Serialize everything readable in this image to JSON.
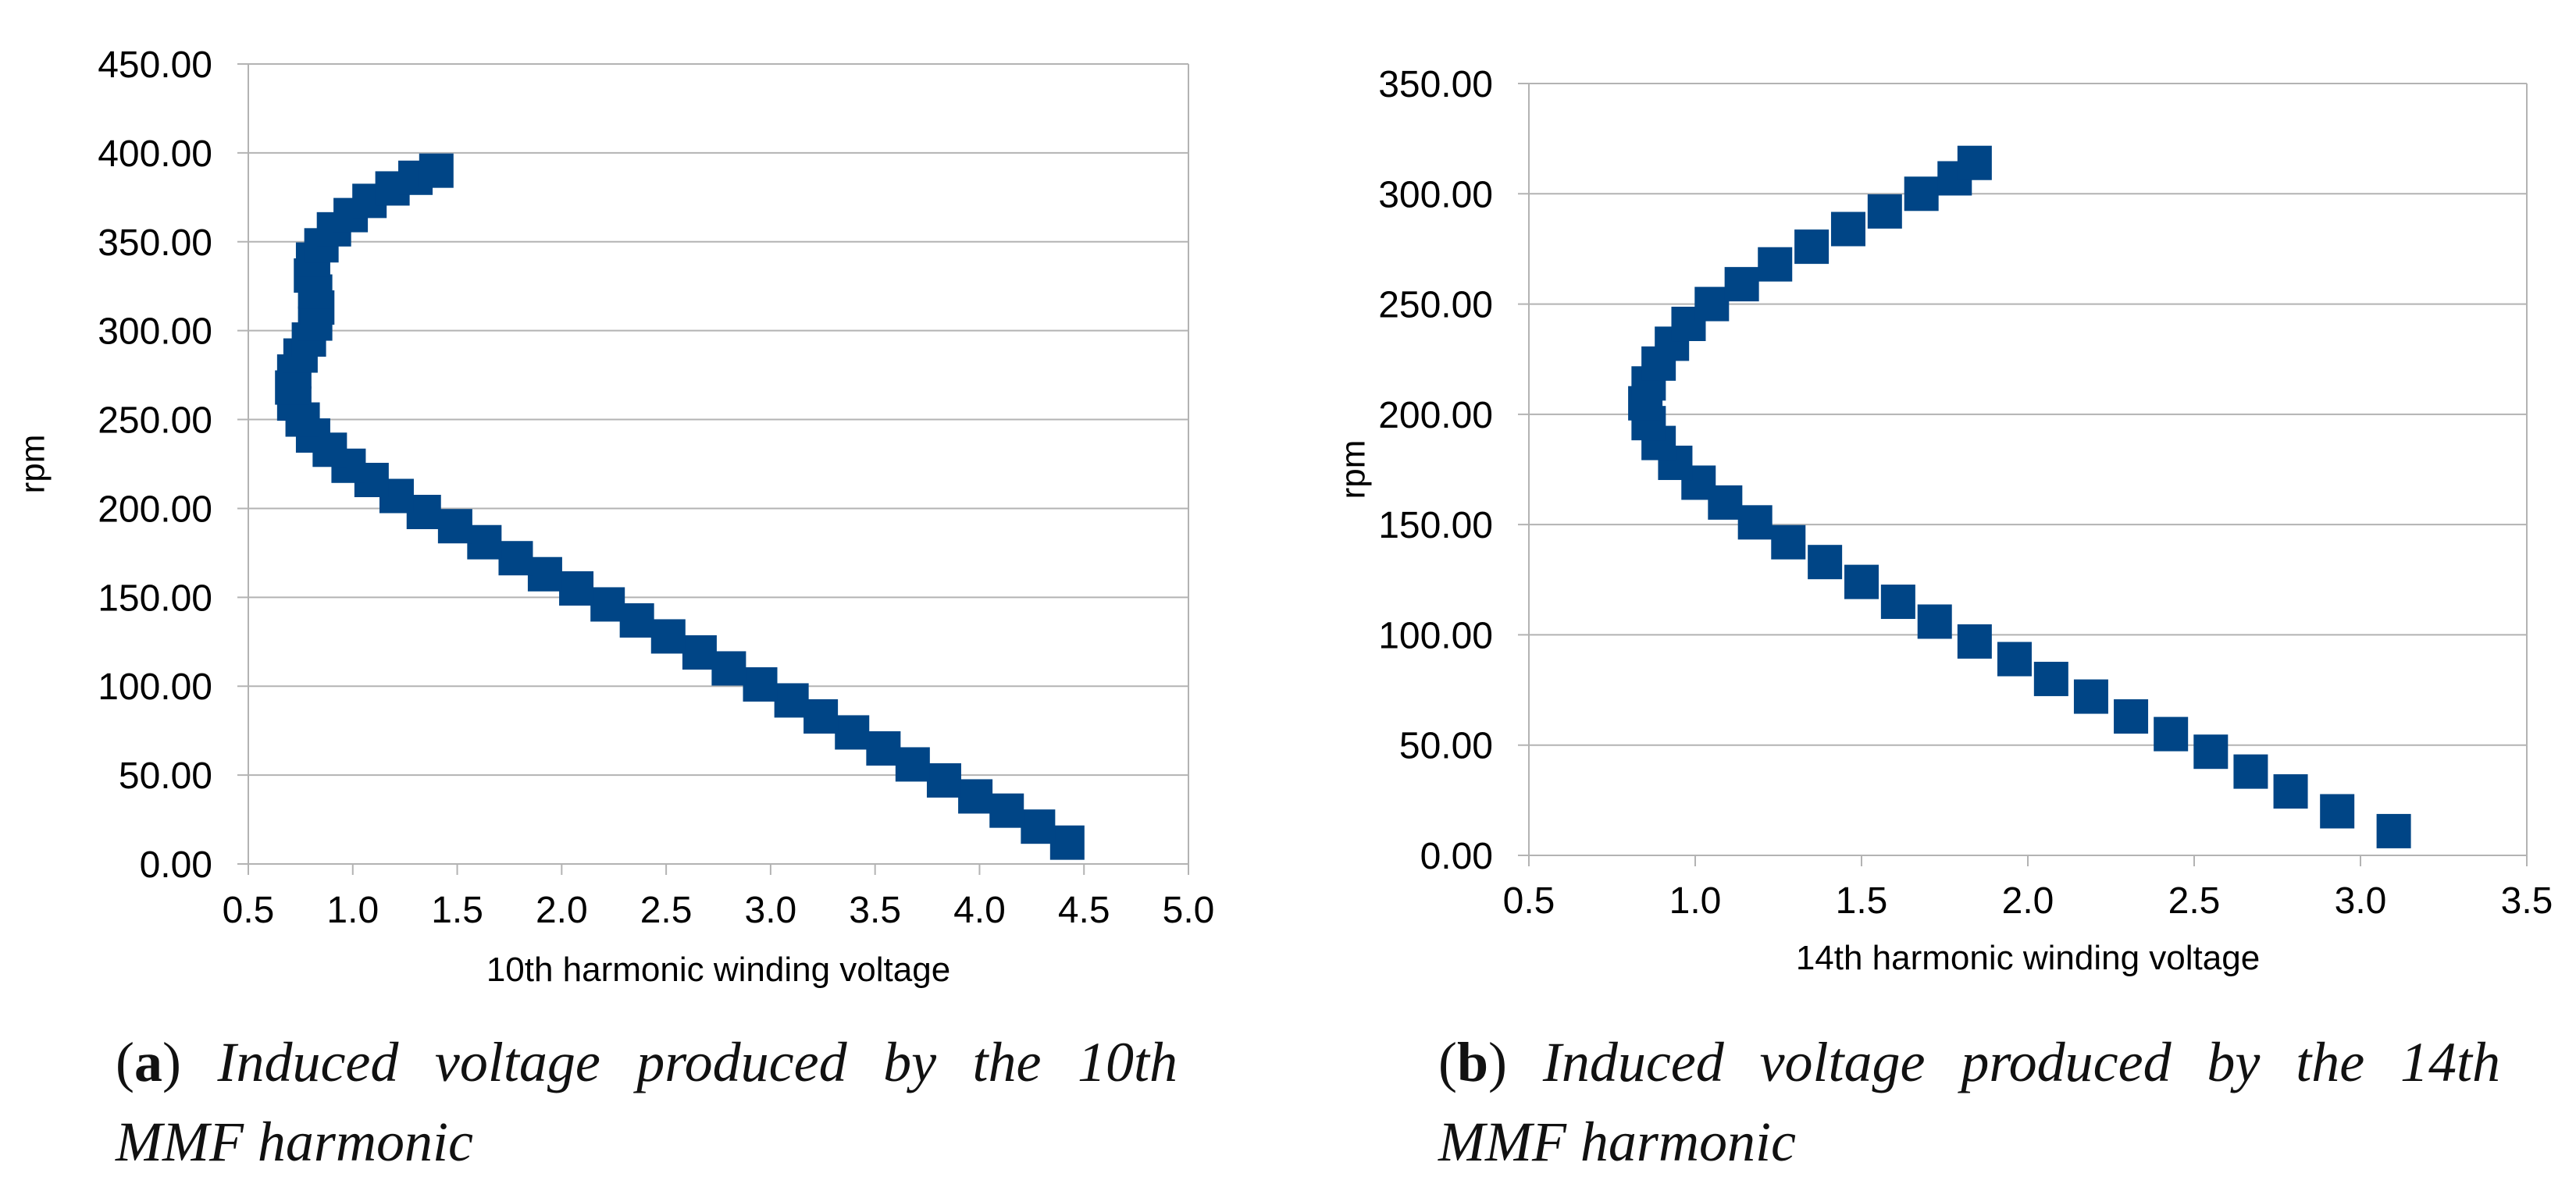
{
  "chart_data": [
    {
      "type": "scatter",
      "panel": "a",
      "xlabel": "10th harmonic winding voltage",
      "ylabel": "rpm",
      "xlim": [
        0.5,
        5.0
      ],
      "ylim": [
        0,
        450
      ],
      "xticks": [
        "0.5",
        "1.0",
        "1.5",
        "2.0",
        "2.5",
        "3.0",
        "3.5",
        "4.0",
        "4.5",
        "5.0"
      ],
      "yticks": [
        "0.00",
        "50.00",
        "100.00",
        "150.00",
        "200.00",
        "250.00",
        "300.00",
        "350.00",
        "400.00",
        "450.00"
      ],
      "grid": "horizontal",
      "marker_color": "#004586",
      "series": [
        {
          "name": "10th harmonic",
          "x": [
            4.42,
            4.28,
            4.13,
            3.98,
            3.83,
            3.68,
            3.54,
            3.39,
            3.24,
            3.1,
            2.95,
            2.8,
            2.66,
            2.51,
            2.36,
            2.22,
            2.07,
            1.92,
            1.78,
            1.63,
            1.49,
            1.34,
            1.21,
            1.09,
            0.98,
            0.89,
            0.81,
            0.76,
            0.72,
            0.71,
            0.72,
            0.75,
            0.79,
            0.82,
            0.83,
            0.82,
            0.8,
            0.81,
            0.85,
            0.91,
            0.99,
            1.08,
            1.19,
            1.3,
            1.4
          ],
          "y": [
            12,
            21,
            30,
            38,
            47,
            56,
            65,
            74,
            83,
            92,
            101,
            110,
            119,
            128,
            137,
            146,
            155,
            163,
            172,
            181,
            190,
            198,
            207,
            216,
            224,
            233,
            241,
            250,
            259,
            268,
            277,
            286,
            295,
            304,
            313,
            322,
            331,
            340,
            348,
            357,
            365,
            373,
            380,
            386,
            390
          ]
        }
      ]
    },
    {
      "type": "scatter",
      "panel": "b",
      "xlabel": "14th harmonic winding voltage",
      "ylabel": "rpm",
      "xlim": [
        0.5,
        3.5
      ],
      "ylim": [
        0,
        350
      ],
      "xticks": [
        "0.5",
        "1.0",
        "1.5",
        "2.0",
        "2.5",
        "3.0",
        "3.5"
      ],
      "yticks": [
        "0.00",
        "50.00",
        "100.00",
        "150.00",
        "200.00",
        "250.00",
        "300.00",
        "350.00"
      ],
      "grid": "horizontal",
      "marker_color": "#004586",
      "series": [
        {
          "name": "14th harmonic",
          "x": [
            3.1,
            2.93,
            2.79,
            2.67,
            2.55,
            2.43,
            2.31,
            2.19,
            2.07,
            1.96,
            1.84,
            1.72,
            1.61,
            1.5,
            1.39,
            1.28,
            1.18,
            1.09,
            1.01,
            0.94,
            0.89,
            0.86,
            0.85,
            0.86,
            0.89,
            0.93,
            0.98,
            1.05,
            1.14,
            1.24,
            1.35,
            1.46,
            1.57,
            1.68,
            1.78,
            1.84
          ],
          "y": [
            11,
            20,
            29,
            38,
            47,
            55,
            63,
            72,
            80,
            89,
            97,
            106,
            115,
            124,
            133,
            142,
            151,
            160,
            169,
            178,
            187,
            196,
            205,
            214,
            223,
            232,
            241,
            250,
            259,
            268,
            276,
            284,
            292,
            300,
            307,
            314
          ]
        }
      ]
    }
  ],
  "captions": [
    {
      "tag": "a",
      "text": "Induced voltage produced by the 10th MMF harmonic"
    },
    {
      "tag": "b",
      "text": "Induced voltage produced by the 14th MMF harmonic"
    }
  ]
}
